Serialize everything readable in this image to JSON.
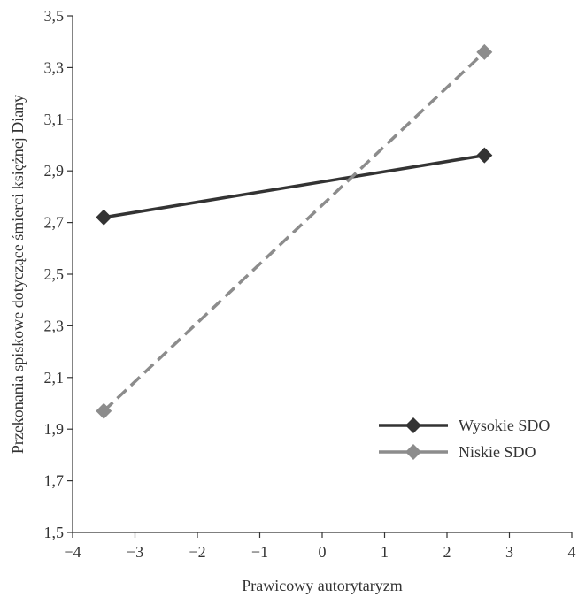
{
  "chart_data": {
    "type": "line",
    "title": "",
    "xlabel": "Prawicowy autorytaryzm",
    "ylabel": "Przekonania spiskowe dotyczące śmierci księżnej Diany",
    "xlim": [
      -4,
      4
    ],
    "ylim": [
      1.5,
      3.5
    ],
    "x_ticks": [
      -4,
      -3,
      -2,
      -1,
      0,
      1,
      2,
      3,
      4
    ],
    "x_tick_labels": [
      "−4",
      "−3",
      "−2",
      "−1",
      "0",
      "1",
      "2",
      "3",
      "4"
    ],
    "y_ticks": [
      1.5,
      1.7,
      1.9,
      2.1,
      2.3,
      2.5,
      2.7,
      2.9,
      3.1,
      3.3,
      3.5
    ],
    "y_tick_labels": [
      "1,5",
      "1,7",
      "1,9",
      "2,1",
      "2,3",
      "2,5",
      "2,7",
      "2,9",
      "3,1",
      "3,3",
      "3,5"
    ],
    "grid": false,
    "legend_position": "bottom-right",
    "series": [
      {
        "name": "Wysokie SDO",
        "x": [
          -3.5,
          2.6
        ],
        "y": [
          2.72,
          2.96
        ],
        "color": "#333333",
        "line_style": "solid",
        "marker": "diamond"
      },
      {
        "name": "Niskie SDO",
        "x": [
          -3.5,
          2.6
        ],
        "y": [
          1.97,
          3.36
        ],
        "color": "#8c8c8c",
        "line_style": "dashed",
        "marker": "diamond"
      }
    ]
  }
}
